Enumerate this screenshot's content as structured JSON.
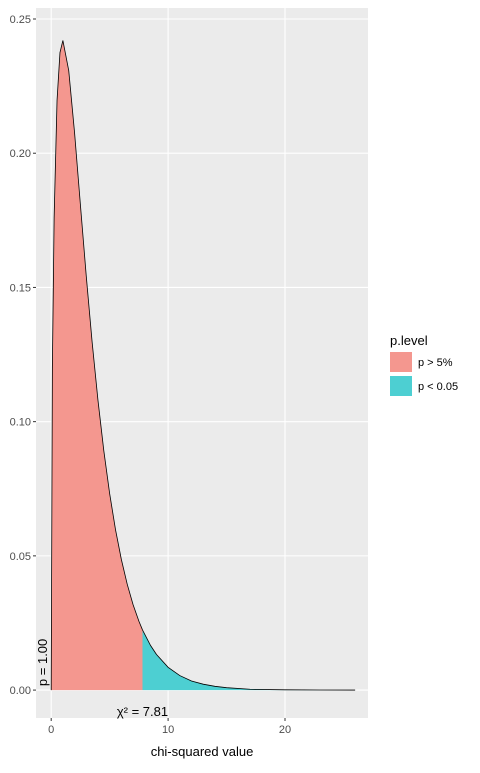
{
  "chart_data": {
    "type": "area",
    "x_label": "chi-squared value",
    "series": [
      {
        "name": "p > 5%",
        "color": "#f4978f",
        "x": [
          0,
          0.1,
          0.25,
          0.5,
          0.75,
          1,
          1.5,
          2,
          2.5,
          3,
          3.5,
          4,
          4.5,
          5,
          5.5,
          6,
          6.5,
          7,
          7.5,
          7.81
        ],
        "values": [
          0,
          0.12,
          0.176,
          0.2197,
          0.2375,
          0.242,
          0.2308,
          0.2076,
          0.1807,
          0.1542,
          0.1297,
          0.108,
          0.0892,
          0.0732,
          0.0598,
          0.0487,
          0.0395,
          0.0319,
          0.0257,
          0.0224
        ]
      },
      {
        "name": "p < 0.05",
        "color": "#4dcfd2",
        "x": [
          7.81,
          8.5,
          9,
          10,
          11,
          12,
          13,
          14,
          15,
          17,
          20,
          23,
          26
        ],
        "values": [
          0.0224,
          0.0166,
          0.0133,
          0.0085,
          0.0054,
          0.0034,
          0.0022,
          0.0014,
          0.0009,
          0.0003,
          0.0001,
          2e-05,
          0
        ]
      }
    ],
    "xlim": [
      -1.3,
      27.1
    ],
    "xticks": [
      0,
      10,
      20
    ],
    "ylim": [
      -0.0104,
      0.2541
    ],
    "yticks": [
      {
        "value": 0,
        "label": "0.00"
      },
      {
        "value": 0.05,
        "label": "0.05"
      },
      {
        "value": 0.1,
        "label": "0.10"
      },
      {
        "value": 0.15,
        "label": "0.15"
      },
      {
        "value": 0.2,
        "label": "0.20"
      },
      {
        "value": 0.25,
        "label": "0.25"
      }
    ],
    "grid": true,
    "legend_title": "p.level",
    "legend_position": "right",
    "annotations": [
      {
        "text": "p = 1.00",
        "x": 0,
        "y": 0
      },
      {
        "text": "χ² = 7.81",
        "x": 7.81,
        "y": 0
      }
    ]
  }
}
